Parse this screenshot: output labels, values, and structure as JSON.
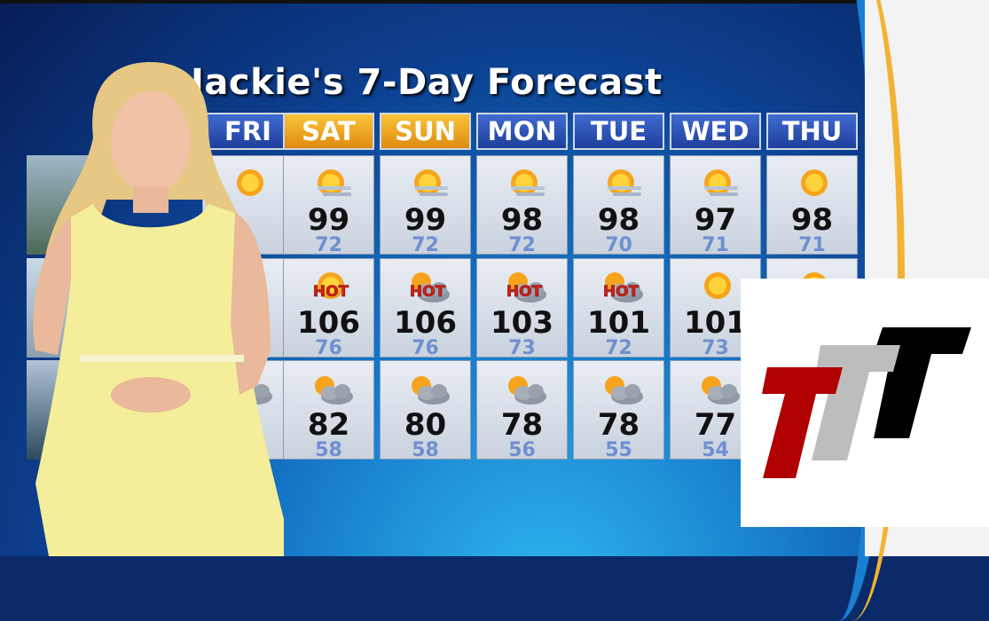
{
  "title": "Jackie's 7-Day Forecast",
  "days": [
    {
      "label": "FRI",
      "weekend": false
    },
    {
      "label": "SAT",
      "weekend": true
    },
    {
      "label": "SUN",
      "weekend": true
    },
    {
      "label": "MON",
      "weekend": false
    },
    {
      "label": "TUE",
      "weekend": false
    },
    {
      "label": "WED",
      "weekend": false
    },
    {
      "label": "THU",
      "weekend": false
    }
  ],
  "rows": [
    {
      "cells": [
        {
          "icon": "sun-icon",
          "hi": "",
          "lo": ""
        },
        {
          "icon": "sun-haze-icon",
          "hi": "99",
          "lo": "72"
        },
        {
          "icon": "sun-haze-icon",
          "hi": "99",
          "lo": "72"
        },
        {
          "icon": "sun-haze-icon",
          "hi": "98",
          "lo": "72"
        },
        {
          "icon": "sun-haze-icon",
          "hi": "98",
          "lo": "70"
        },
        {
          "icon": "sun-haze-icon",
          "hi": "97",
          "lo": "71"
        },
        {
          "icon": "sun-icon",
          "hi": "98",
          "lo": "71"
        }
      ]
    },
    {
      "cells": [
        {
          "icon": "hot-icon",
          "hi": "",
          "lo": ""
        },
        {
          "icon": "hot-icon",
          "hi": "106",
          "lo": "76",
          "badge": "HOT"
        },
        {
          "icon": "hot-cloud-icon",
          "hi": "106",
          "lo": "76",
          "badge": "HOT"
        },
        {
          "icon": "hot-cloud-icon",
          "hi": "103",
          "lo": "73",
          "badge": "HOT"
        },
        {
          "icon": "hot-cloud-icon",
          "hi": "101",
          "lo": "72",
          "badge": "HOT"
        },
        {
          "icon": "sun-icon",
          "hi": "101",
          "lo": "73"
        },
        {
          "icon": "sun-icon",
          "hi": "",
          "lo": ""
        }
      ]
    },
    {
      "cells": [
        {
          "icon": "partly-cloudy-icon",
          "hi": "",
          "lo": ""
        },
        {
          "icon": "partly-cloudy-icon",
          "hi": "82",
          "lo": "58"
        },
        {
          "icon": "partly-cloudy-icon",
          "hi": "80",
          "lo": "58"
        },
        {
          "icon": "partly-cloudy-icon",
          "hi": "78",
          "lo": "56"
        },
        {
          "icon": "partly-cloudy-icon",
          "hi": "78",
          "lo": "55"
        },
        {
          "icon": "partly-cloudy-icon",
          "hi": "77",
          "lo": "54"
        },
        {
          "icon": "partly-cloudy-icon",
          "hi": "",
          "lo": ""
        }
      ]
    }
  ],
  "colors": {
    "weekday_header": "#2f56b8",
    "weekend_header": "#f0a020",
    "high_temp": "#111111",
    "low_temp": "#6f8fd0",
    "logo_red": "#b00000",
    "logo_gray": "#bdbdbd",
    "logo_black": "#000000"
  }
}
